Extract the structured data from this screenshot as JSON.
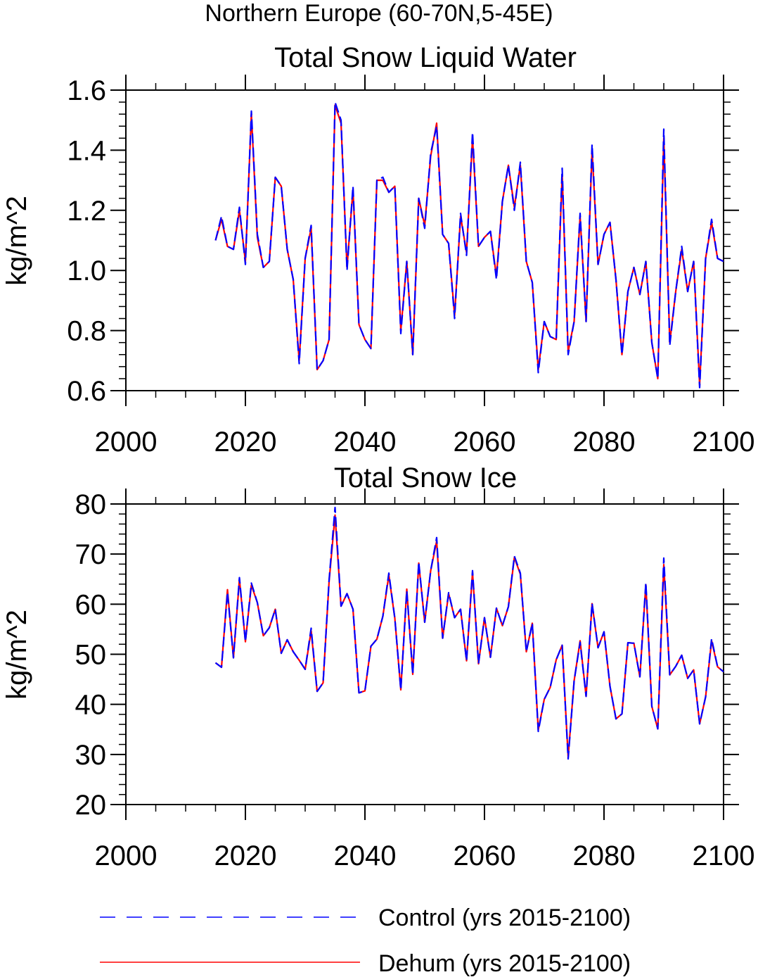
{
  "figure_title": "Northern Europe (60-70N,5-45E)",
  "legend": [
    {
      "label": "Control (yrs 2015-2100)",
      "color": "#0000ff",
      "style": "dashed"
    },
    {
      "label": "Dehum (yrs 2015-2100)",
      "color": "#ff0000",
      "style": "solid"
    }
  ],
  "chart_data": [
    {
      "type": "line",
      "title": "Total Snow Liquid Water",
      "xlabel": "",
      "ylabel": "kg/m^2",
      "xlim": [
        2000,
        2100
      ],
      "ylim": [
        0.6,
        1.6
      ],
      "xticks": [
        2000,
        2020,
        2040,
        2060,
        2080,
        2100
      ],
      "xtick_labels": [
        "2000",
        "2020",
        "2040",
        "2060",
        "2080",
        "2100"
      ],
      "yticks": [
        0.6,
        0.8,
        1.0,
        1.2,
        1.4,
        1.6
      ],
      "ytick_labels": [
        "0.6",
        "0.8",
        "1.0",
        "1.2",
        "1.4",
        "1.6"
      ],
      "x_start": 2015,
      "series": [
        {
          "name": "Control (yrs 2015-2100)",
          "color": "#0000ff",
          "style": "dashed",
          "values": [
            1.1,
            1.18,
            1.08,
            1.07,
            1.21,
            1.02,
            1.53,
            1.12,
            1.01,
            1.03,
            1.31,
            1.28,
            1.07,
            0.97,
            0.69,
            1.04,
            1.15,
            0.67,
            0.7,
            0.77,
            1.56,
            1.5,
            1.0,
            1.28,
            0.82,
            0.77,
            0.74,
            1.3,
            1.31,
            1.26,
            1.28,
            0.79,
            1.03,
            0.72,
            1.24,
            1.14,
            1.39,
            1.48,
            1.12,
            1.09,
            0.84,
            1.19,
            1.05,
            1.46,
            1.08,
            1.11,
            1.13,
            0.97,
            1.23,
            1.35,
            1.2,
            1.36,
            1.03,
            0.96,
            0.66,
            0.83,
            0.78,
            0.77,
            1.34,
            0.72,
            0.83,
            1.19,
            0.83,
            1.42,
            1.02,
            1.12,
            1.16,
            0.97,
            0.72,
            0.93,
            1.01,
            0.92,
            1.03,
            0.76,
            0.64,
            1.47,
            0.75,
            0.93,
            1.08,
            0.93,
            1.03,
            0.61,
            1.04,
            1.17,
            1.04,
            1.03
          ]
        },
        {
          "name": "Dehum (yrs 2015-2100)",
          "color": "#ff0000",
          "style": "solid",
          "values": [
            1.1,
            1.17,
            1.08,
            1.07,
            1.2,
            1.03,
            1.52,
            1.11,
            1.01,
            1.03,
            1.31,
            1.28,
            1.07,
            0.97,
            0.7,
            1.04,
            1.14,
            0.67,
            0.7,
            0.77,
            1.55,
            1.49,
            1.01,
            1.27,
            0.82,
            0.77,
            0.74,
            1.3,
            1.3,
            1.26,
            1.28,
            0.8,
            1.03,
            0.72,
            1.24,
            1.15,
            1.38,
            1.49,
            1.12,
            1.09,
            0.85,
            1.18,
            1.06,
            1.44,
            1.08,
            1.11,
            1.13,
            0.98,
            1.23,
            1.35,
            1.21,
            1.35,
            1.03,
            0.96,
            0.67,
            0.83,
            0.78,
            0.77,
            1.32,
            0.73,
            0.83,
            1.18,
            0.83,
            1.4,
            1.02,
            1.12,
            1.16,
            0.97,
            0.72,
            0.93,
            1.01,
            0.92,
            1.03,
            0.76,
            0.64,
            1.44,
            0.76,
            0.93,
            1.07,
            0.93,
            1.03,
            0.62,
            1.04,
            1.16,
            1.04,
            1.03
          ]
        }
      ]
    },
    {
      "type": "line",
      "title": "Total Snow Ice",
      "xlabel": "",
      "ylabel": "kg/m^2",
      "xlim": [
        2000,
        2100
      ],
      "ylim": [
        20,
        80
      ],
      "xticks": [
        2000,
        2020,
        2040,
        2060,
        2080,
        2100
      ],
      "xtick_labels": [
        "2000",
        "2020",
        "2040",
        "2060",
        "2080",
        "2100"
      ],
      "yticks": [
        20,
        30,
        40,
        50,
        60,
        70,
        80
      ],
      "ytick_labels": [
        "20",
        "30",
        "40",
        "50",
        "60",
        "70",
        "80"
      ],
      "x_start": 2015,
      "series": [
        {
          "name": "Control (yrs 2015-2100)",
          "color": "#0000ff",
          "style": "dashed",
          "values": [
            48.3,
            47.4,
            62.4,
            49.3,
            65.3,
            52.5,
            64.2,
            60.3,
            53.7,
            55.3,
            59.0,
            50.2,
            52.9,
            50.5,
            48.8,
            47.0,
            55.2,
            42.6,
            44.3,
            64.8,
            79.3,
            59.6,
            62.1,
            59.0,
            42.3,
            42.7,
            51.6,
            53.0,
            57.6,
            66.2,
            57.2,
            42.9,
            62.7,
            46.0,
            68.4,
            56.4,
            66.7,
            73.3,
            53.2,
            62.3,
            57.3,
            59.0,
            48.7,
            66.7,
            48.1,
            57.3,
            49.4,
            59.2,
            55.7,
            59.5,
            69.6,
            66.2,
            50.5,
            56.2,
            34.6,
            41.0,
            43.4,
            48.9,
            51.8,
            29.1,
            44.7,
            52.4,
            41.6,
            60.2,
            51.3,
            54.5,
            43.6,
            37.1,
            38.1,
            52.3,
            52.2,
            45.5,
            64.3,
            39.6,
            35.1,
            69.2,
            45.9,
            47.6,
            49.8,
            45.2,
            46.9,
            36.1,
            41.5,
            53.1,
            47.5,
            46.5
          ]
        },
        {
          "name": "Dehum (yrs 2015-2100)",
          "color": "#ff0000",
          "style": "solid",
          "values": [
            48.3,
            47.4,
            62.9,
            49.3,
            65.0,
            52.5,
            63.8,
            60.3,
            53.7,
            55.3,
            59.0,
            50.2,
            52.9,
            50.5,
            48.8,
            47.0,
            54.7,
            42.6,
            44.3,
            64.5,
            77.8,
            59.6,
            62.1,
            59.0,
            42.3,
            42.7,
            51.6,
            53.0,
            57.6,
            65.8,
            57.2,
            42.9,
            63.0,
            46.0,
            68.2,
            56.4,
            66.7,
            72.6,
            53.2,
            62.1,
            57.3,
            59.0,
            48.7,
            66.3,
            48.1,
            57.3,
            49.4,
            59.2,
            55.7,
            59.5,
            69.3,
            66.0,
            50.5,
            56.2,
            34.9,
            41.0,
            43.4,
            48.9,
            51.8,
            29.5,
            44.7,
            52.7,
            41.6,
            60.1,
            51.3,
            54.5,
            43.6,
            37.1,
            38.1,
            52.3,
            52.2,
            45.5,
            63.9,
            39.6,
            35.1,
            67.9,
            45.9,
            47.6,
            49.8,
            45.2,
            46.9,
            36.1,
            41.5,
            52.7,
            47.5,
            46.5
          ]
        }
      ]
    }
  ]
}
